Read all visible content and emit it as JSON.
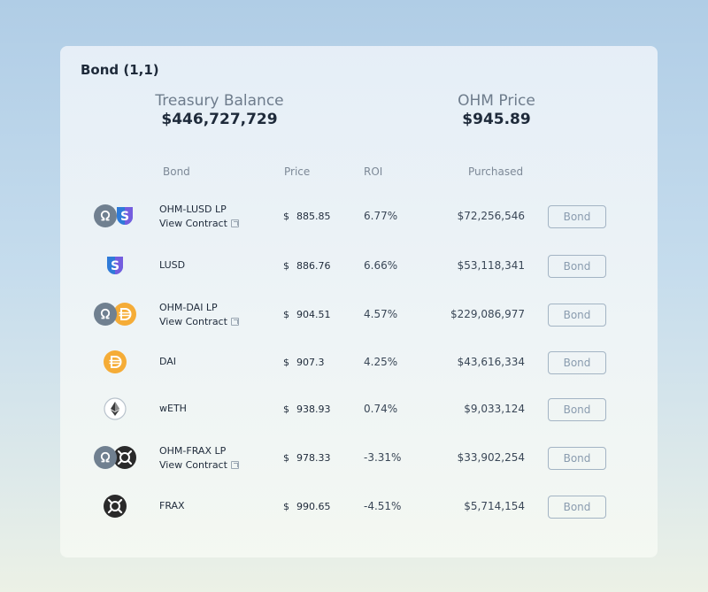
{
  "card": {
    "title": "Bond (1,1)"
  },
  "metrics": {
    "treasury": {
      "label": "Treasury Balance",
      "value": "$446,727,729"
    },
    "ohm_price": {
      "label": "OHM Price",
      "value": "$945.89"
    }
  },
  "table": {
    "headers": {
      "bond": "Bond",
      "price": "Price",
      "roi": "ROI",
      "purchased": "Purchased"
    },
    "currency_symbol": "$",
    "view_contract_label": "View Contract",
    "bond_button_label": "Bond",
    "rows": [
      {
        "name": "OHM-LUSD LP",
        "lp": true,
        "icons": [
          "ohm-icon",
          "lusd-icon"
        ],
        "price": "885.85",
        "roi": "6.77%",
        "purchased": "$72,256,546"
      },
      {
        "name": "LUSD",
        "lp": false,
        "icons": [
          "lusd-icon"
        ],
        "price": "886.76",
        "roi": "6.66%",
        "purchased": "$53,118,341"
      },
      {
        "name": "OHM-DAI LP",
        "lp": true,
        "icons": [
          "ohm-icon",
          "dai-icon"
        ],
        "price": "904.51",
        "roi": "4.57%",
        "purchased": "$229,086,977"
      },
      {
        "name": "DAI",
        "lp": false,
        "icons": [
          "dai-icon"
        ],
        "price": "907.3",
        "roi": "4.25%",
        "purchased": "$43,616,334"
      },
      {
        "name": "wETH",
        "lp": false,
        "icons": [
          "weth-icon"
        ],
        "price": "938.93",
        "roi": "0.74%",
        "purchased": "$9,033,124"
      },
      {
        "name": "OHM-FRAX LP",
        "lp": true,
        "icons": [
          "ohm-icon",
          "frax-icon"
        ],
        "price": "978.33",
        "roi": "-3.31%",
        "purchased": "$33,902,254"
      },
      {
        "name": "FRAX",
        "lp": false,
        "icons": [
          "frax-icon"
        ],
        "price": "990.65",
        "roi": "-4.51%",
        "purchased": "$5,714,154"
      }
    ]
  },
  "colors": {
    "ohm": "#708090",
    "lusd_blue": "#2f7bd8",
    "lusd_purple": "#745ddf",
    "dai": "#f5ac37",
    "frax": "#2a2a2a",
    "weth_ring": "#b8c2cc"
  }
}
